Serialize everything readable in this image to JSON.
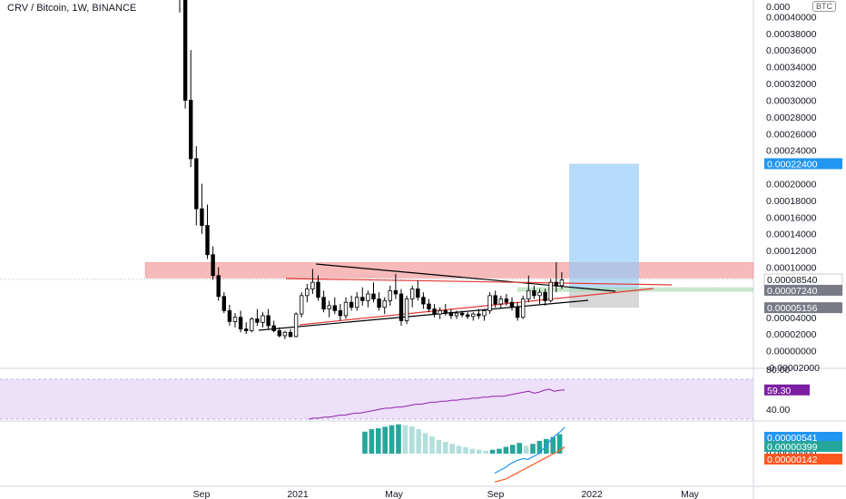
{
  "header": {
    "symbol_title": "CRV / Bitcoin, 1W, BINANCE",
    "currency_chip": "BTC"
  },
  "colors": {
    "up": "#ffffff",
    "down": "#000000",
    "wick": "#000000",
    "resistance_zone": "#f4a3a3",
    "target_zone": "#90caf9",
    "support_zone": "#a5d6a7",
    "stop_zone": "#bdbdbd",
    "trendline": "#000000",
    "red_trendline": "#e53935",
    "rsi_band": "#e9d8f7",
    "rsi_line": "#8e24aa",
    "macd_line": "#2196f3",
    "signal_line": "#ff5722",
    "hist_up": "#26a69a",
    "hist_up_light": "#b2dfdb",
    "badge_blue": "#2196f3",
    "badge_gray": "#787b86",
    "badge_orange": "#ff5722",
    "badge_purple": "#7b1fa2"
  },
  "chart_data": [
    {
      "type": "candlestick",
      "title": "CRV / Bitcoin, 1W, BINANCE",
      "x_ticks": [
        "Sep",
        "2021",
        "May",
        "Sep",
        "2022",
        "May"
      ],
      "y_ticks": [
        "0.00040000",
        "0.00038000",
        "0.00036000",
        "0.00034000",
        "0.00032000",
        "0.00030000",
        "0.00028000",
        "0.00026000",
        "0.00024000",
        "0.00020000",
        "0.00018000",
        "0.00016000",
        "0.00014000",
        "0.00012000",
        "0.00010000",
        "0.00004000",
        "0.00002000",
        "0.00000000",
        "-0.00002000"
      ],
      "y_tick_top_partial": "0.000",
      "ylim": [
        -2e-05,
        0.00042
      ],
      "candles": [
        {
          "o": 0.000435,
          "h": 0.000435,
          "l": 0.000405,
          "c": 0.000428
        },
        {
          "o": 0.000428,
          "h": 0.00043,
          "l": 0.00029,
          "c": 0.0003
        },
        {
          "o": 0.0003,
          "h": 0.00036,
          "l": 0.00022,
          "c": 0.00023
        },
        {
          "o": 0.00023,
          "h": 0.000245,
          "l": 0.00015,
          "c": 0.00017
        },
        {
          "o": 0.00017,
          "h": 0.0002,
          "l": 0.00014,
          "c": 0.00015
        },
        {
          "o": 0.00015,
          "h": 0.000175,
          "l": 0.00011,
          "c": 0.000115
        },
        {
          "o": 0.000115,
          "h": 0.000125,
          "l": 8.5e-05,
          "c": 9e-05
        },
        {
          "o": 9e-05,
          "h": 0.0001,
          "l": 6e-05,
          "c": 6.5e-05
        },
        {
          "o": 6.5e-05,
          "h": 7e-05,
          "l": 4.5e-05,
          "c": 4.8e-05
        },
        {
          "o": 4.8e-05,
          "h": 5.5e-05,
          "l": 3e-05,
          "c": 3.5e-05
        },
        {
          "o": 3.5e-05,
          "h": 4.5e-05,
          "l": 2.8e-05,
          "c": 4e-05
        },
        {
          "o": 4e-05,
          "h": 4.8e-05,
          "l": 2.2e-05,
          "c": 2.6e-05
        },
        {
          "o": 2.6e-05,
          "h": 3.4e-05,
          "l": 2e-05,
          "c": 2.4e-05
        },
        {
          "o": 2.4e-05,
          "h": 4e-05,
          "l": 2.2e-05,
          "c": 3.8e-05
        },
        {
          "o": 3.8e-05,
          "h": 5e-05,
          "l": 3e-05,
          "c": 3.4e-05
        },
        {
          "o": 3.4e-05,
          "h": 4.6e-05,
          "l": 2.8e-05,
          "c": 4.2e-05
        },
        {
          "o": 4.2e-05,
          "h": 5e-05,
          "l": 2.6e-05,
          "c": 3e-05
        },
        {
          "o": 3e-05,
          "h": 3.6e-05,
          "l": 2.2e-05,
          "c": 2.4e-05
        },
        {
          "o": 2.4e-05,
          "h": 2.8e-05,
          "l": 1.6e-05,
          "c": 1.8e-05
        },
        {
          "o": 1.8e-05,
          "h": 2.4e-05,
          "l": 1.4e-05,
          "c": 2.2e-05
        },
        {
          "o": 2.2e-05,
          "h": 2.6e-05,
          "l": 1.6e-05,
          "c": 1.7e-05
        },
        {
          "o": 1.7e-05,
          "h": 4.6e-05,
          "l": 1.6e-05,
          "c": 4.4e-05
        },
        {
          "o": 4.4e-05,
          "h": 7e-05,
          "l": 4e-05,
          "c": 6.6e-05
        },
        {
          "o": 6.6e-05,
          "h": 8e-05,
          "l": 5.8e-05,
          "c": 7.4e-05
        },
        {
          "o": 7.4e-05,
          "h": 9.8e-05,
          "l": 6.8e-05,
          "c": 8.2e-05
        },
        {
          "o": 8.2e-05,
          "h": 9e-05,
          "l": 6e-05,
          "c": 6.4e-05
        },
        {
          "o": 6.4e-05,
          "h": 7.2e-05,
          "l": 4.6e-05,
          "c": 5e-05
        },
        {
          "o": 5e-05,
          "h": 6e-05,
          "l": 4e-05,
          "c": 5.4e-05
        },
        {
          "o": 5.4e-05,
          "h": 6.4e-05,
          "l": 4.4e-05,
          "c": 4.8e-05
        },
        {
          "o": 4.8e-05,
          "h": 5.6e-05,
          "l": 3.6e-05,
          "c": 4.2e-05
        },
        {
          "o": 4.2e-05,
          "h": 6.4e-05,
          "l": 3.8e-05,
          "c": 5.8e-05
        },
        {
          "o": 5.8e-05,
          "h": 6.6e-05,
          "l": 4.8e-05,
          "c": 5.2e-05
        },
        {
          "o": 5.2e-05,
          "h": 7e-05,
          "l": 4.8e-05,
          "c": 6.4e-05
        },
        {
          "o": 6.4e-05,
          "h": 7.6e-05,
          "l": 5.4e-05,
          "c": 6e-05
        },
        {
          "o": 6e-05,
          "h": 7.2e-05,
          "l": 5.2e-05,
          "c": 6.8e-05
        },
        {
          "o": 6.8e-05,
          "h": 8.2e-05,
          "l": 5.8e-05,
          "c": 6.2e-05
        },
        {
          "o": 6.2e-05,
          "h": 7e-05,
          "l": 4.8e-05,
          "c": 5.2e-05
        },
        {
          "o": 5.2e-05,
          "h": 6.4e-05,
          "l": 4.4e-05,
          "c": 6e-05
        },
        {
          "o": 6e-05,
          "h": 7.8e-05,
          "l": 5.4e-05,
          "c": 7.2e-05
        },
        {
          "o": 7.2e-05,
          "h": 9.2e-05,
          "l": 6.2e-05,
          "c": 6.8e-05
        },
        {
          "o": 6.8e-05,
          "h": 7.4e-05,
          "l": 3e-05,
          "c": 3.6e-05
        },
        {
          "o": 3.6e-05,
          "h": 6.6e-05,
          "l": 3.2e-05,
          "c": 6.2e-05
        },
        {
          "o": 6.2e-05,
          "h": 7.8e-05,
          "l": 5.2e-05,
          "c": 7.4e-05
        },
        {
          "o": 7.4e-05,
          "h": 8.4e-05,
          "l": 6e-05,
          "c": 6.4e-05
        },
        {
          "o": 6.4e-05,
          "h": 7e-05,
          "l": 5e-05,
          "c": 5.6e-05
        },
        {
          "o": 5.6e-05,
          "h": 6.2e-05,
          "l": 4.6e-05,
          "c": 5e-05
        },
        {
          "o": 5e-05,
          "h": 5.6e-05,
          "l": 4e-05,
          "c": 4.4e-05
        },
        {
          "o": 4.4e-05,
          "h": 5.2e-05,
          "l": 3.8e-05,
          "c": 4.8e-05
        },
        {
          "o": 4.8e-05,
          "h": 5.6e-05,
          "l": 4.2e-05,
          "c": 4.6e-05
        },
        {
          "o": 4.6e-05,
          "h": 5e-05,
          "l": 3.8e-05,
          "c": 4.2e-05
        },
        {
          "o": 4.2e-05,
          "h": 4.8e-05,
          "l": 3.8e-05,
          "c": 4.5e-05
        },
        {
          "o": 4.5e-05,
          "h": 4.8e-05,
          "l": 4e-05,
          "c": 4.3e-05
        },
        {
          "o": 4.3e-05,
          "h": 4.6e-05,
          "l": 3.8e-05,
          "c": 4.1e-05
        },
        {
          "o": 4.1e-05,
          "h": 4.6e-05,
          "l": 3.6e-05,
          "c": 4.4e-05
        },
        {
          "o": 4.4e-05,
          "h": 5e-05,
          "l": 3.8e-05,
          "c": 4.2e-05
        },
        {
          "o": 4.2e-05,
          "h": 5e-05,
          "l": 3.6e-05,
          "c": 4.8e-05
        },
        {
          "o": 4.8e-05,
          "h": 7e-05,
          "l": 4.4e-05,
          "c": 6.6e-05
        },
        {
          "o": 6.6e-05,
          "h": 7.2e-05,
          "l": 5.2e-05,
          "c": 5.6e-05
        },
        {
          "o": 5.6e-05,
          "h": 6.6e-05,
          "l": 5e-05,
          "c": 6.2e-05
        },
        {
          "o": 6.2e-05,
          "h": 6.8e-05,
          "l": 5.4e-05,
          "c": 5.8e-05
        },
        {
          "o": 5.8e-05,
          "h": 6.4e-05,
          "l": 4.8e-05,
          "c": 5.2e-05
        },
        {
          "o": 5.2e-05,
          "h": 5.8e-05,
          "l": 3.6e-05,
          "c": 4e-05
        },
        {
          "o": 4e-05,
          "h": 6.6e-05,
          "l": 3.8e-05,
          "c": 6.2e-05
        },
        {
          "o": 6.2e-05,
          "h": 9e-05,
          "l": 5.8e-05,
          "c": 7.2e-05
        },
        {
          "o": 7.2e-05,
          "h": 7.8e-05,
          "l": 6.2e-05,
          "c": 6.6e-05
        },
        {
          "o": 6.6e-05,
          "h": 7.4e-05,
          "l": 5.6e-05,
          "c": 7e-05
        },
        {
          "o": 7e-05,
          "h": 7.4e-05,
          "l": 5.4e-05,
          "c": 6e-05
        },
        {
          "o": 6e-05,
          "h": 8.6e-05,
          "l": 5.8e-05,
          "c": 8.2e-05
        },
        {
          "o": 8.2e-05,
          "h": 0.000106,
          "l": 7e-05,
          "c": 7.8e-05
        },
        {
          "o": 7.8e-05,
          "h": 9.4e-05,
          "l": 7.4e-05,
          "c": 8.5e-05
        }
      ],
      "zones": {
        "resistance": [
          8.72e-05,
          0.0001056
        ],
        "target": [
          7.24e-05,
          0.000224
        ],
        "support": [
          7.06e-05,
          7.6e-05
        ],
        "stop": [
          5.16e-05,
          7.24e-05
        ]
      },
      "price_badges": [
        {
          "label": "0.00022400",
          "value": 0.000224,
          "color": "#2196f3"
        },
        {
          "label": "0.00008540",
          "sublabel": "3d 20h",
          "value": 8.54e-05,
          "color": "#ffffff"
        },
        {
          "label": "0.00007240",
          "value": 7.24e-05,
          "color": "#787b86"
        },
        {
          "label": "0.00005156",
          "value": 5.156e-05,
          "color": "#787b86"
        }
      ]
    },
    {
      "type": "line",
      "name": "RSI",
      "y_ticks": [
        "80.00",
        "40.00"
      ],
      "ylim": [
        30,
        80
      ],
      "band": [
        30,
        70
      ],
      "values": [
        30,
        31,
        31,
        32,
        32,
        33,
        34,
        34,
        35,
        36,
        36,
        37,
        38,
        39,
        40,
        41,
        41,
        42,
        42,
        43,
        44,
        45,
        45,
        46,
        47,
        47,
        48,
        48,
        49,
        49,
        50,
        50,
        51,
        51,
        52,
        52,
        53,
        53,
        53,
        54,
        55,
        56,
        57,
        58,
        56,
        57,
        59,
        60,
        58,
        59,
        59.3
      ],
      "last_label": "59.30"
    },
    {
      "type": "bar",
      "name": "MACD",
      "y_ticks": [
        "0.00000000"
      ],
      "ylim": [
        -6.5e-06,
        6.5e-06
      ],
      "histogram": [
        4.5e-06,
        5e-06,
        5.2e-06,
        5.5e-06,
        5.8e-06,
        6e-06,
        5.8e-06,
        5.6e-06,
        5e-06,
        4.2e-06,
        3.5e-06,
        2.8e-06,
        2.4e-06,
        2e-06,
        1.6e-06,
        1.3e-06,
        1e-06,
        8e-07,
        6e-07,
        8e-07,
        1e-06,
        1.4e-06,
        1.8e-06,
        2.2e-06,
        1.6e-06,
        2e-06,
        2.6e-06,
        3e-06,
        3.4e-06,
        4e-06
      ],
      "macd": [
        -4e-06,
        -3.6e-06,
        -3.2e-06,
        -2.8e-06,
        -2.2e-06,
        -1.8e-06,
        -1.4e-06,
        -1.2e-06,
        -1e-06,
        -1.2e-06,
        -8e-07,
        -4e-07,
        0.0,
        8e-07,
        1.6e-06,
        2.6e-06,
        3.4e-06,
        4e-06,
        4.6e-06,
        5.4e-06
      ],
      "signal": [
        -5.8e-06,
        -5.6e-06,
        -5.4e-06,
        -5.2e-06,
        -4.8e-06,
        -4.4e-06,
        -4e-06,
        -3.6e-06,
        -3.2e-06,
        -2.8e-06,
        -2.4e-06,
        -2e-06,
        -1.6e-06,
        -1.2e-06,
        -8e-07,
        -4e-07,
        0.0,
        4e-07,
        8e-07,
        1.4e-06
      ],
      "badges": [
        {
          "label": "0.00000541",
          "color": "#2196f3"
        },
        {
          "label": "0.00000399",
          "color": "#26a69a"
        },
        {
          "label": "0.00000142",
          "color": "#ff5722"
        }
      ]
    }
  ]
}
